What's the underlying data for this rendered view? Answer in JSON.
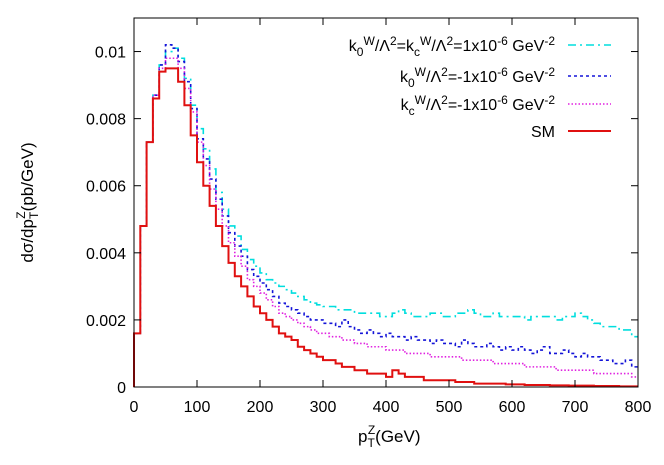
{
  "chart_data": {
    "type": "line",
    "step": true,
    "xlabel": "p_T^Z(GeV)",
    "ylabel": "dσ/dp_T^Z(pb/GeV)",
    "xlim": [
      0,
      800
    ],
    "ylim": [
      0,
      0.011
    ],
    "x_ticks": [
      "0",
      "100",
      "200",
      "300",
      "400",
      "500",
      "600",
      "700",
      "800"
    ],
    "y_ticks": [
      "0",
      "0.002",
      "0.004",
      "0.006",
      "0.008",
      "0.01"
    ],
    "legend_position": "top-right",
    "bin_width": 10,
    "series": [
      {
        "name": "k0W/Λ2=kcW/Λ2=1x10-6 GeV-2",
        "color": "#00dede",
        "dash": "8 4 2 4",
        "values": [
          0.0016,
          0.0048,
          0.0073,
          0.0087,
          0.0096,
          0.01,
          0.0101,
          0.0098,
          0.0092,
          0.0084,
          0.0077,
          0.0071,
          0.0065,
          0.0058,
          0.0053,
          0.0048,
          0.0045,
          0.0041,
          0.0038,
          0.0036,
          0.0034,
          0.0032,
          0.0031,
          0.003,
          0.0029,
          0.0028,
          0.0027,
          0.0026,
          0.0025,
          0.00245,
          0.0024,
          0.0024,
          0.0023,
          0.0023,
          0.0023,
          0.0022,
          0.0022,
          0.0022,
          0.0022,
          0.0021,
          0.0021,
          0.0022,
          0.0023,
          0.0022,
          0.0021,
          0.0021,
          0.0021,
          0.0022,
          0.0022,
          0.0021,
          0.0021,
          0.0022,
          0.0022,
          0.0023,
          0.0022,
          0.0021,
          0.0021,
          0.0022,
          0.0021,
          0.0021,
          0.0021,
          0.0021,
          0.002,
          0.0021,
          0.0021,
          0.0021,
          0.0021,
          0.002,
          0.0021,
          0.0021,
          0.0022,
          0.0021,
          0.002,
          0.0019,
          0.0018,
          0.0018,
          0.0018,
          0.0017,
          0.0017,
          0.0015
        ]
      },
      {
        "name": "k0W/Λ2=-1x10-6 GeV-2",
        "color": "#1414d8",
        "dash": "3 3",
        "values": [
          0.0016,
          0.0048,
          0.0073,
          0.0087,
          0.0096,
          0.0102,
          0.0101,
          0.0097,
          0.0091,
          0.0083,
          0.0074,
          0.0068,
          0.0062,
          0.0056,
          0.0051,
          0.0046,
          0.0042,
          0.0039,
          0.0035,
          0.0033,
          0.0031,
          0.0029,
          0.0027,
          0.0025,
          0.0024,
          0.0023,
          0.0022,
          0.0021,
          0.002,
          0.002,
          0.0019,
          0.0019,
          0.0018,
          0.002,
          0.0018,
          0.0017,
          0.0016,
          0.0017,
          0.0016,
          0.0015,
          0.0016,
          0.0015,
          0.0015,
          0.0014,
          0.0015,
          0.0014,
          0.0014,
          0.0013,
          0.0014,
          0.0013,
          0.0013,
          0.0012,
          0.0014,
          0.0013,
          0.0012,
          0.0012,
          0.0013,
          0.0012,
          0.0011,
          0.0012,
          0.0011,
          0.0012,
          0.0011,
          0.001,
          0.0011,
          0.0012,
          0.001,
          0.001,
          0.0011,
          0.001,
          0.0009,
          0.001,
          0.0009,
          0.0009,
          0.0008,
          0.0008,
          0.0007,
          0.0007,
          0.0008,
          0.0006
        ]
      },
      {
        "name": "kcW/Λ2=-1x10-6 GeV-2",
        "color": "#e020e0",
        "dash": "1.5 2",
        "values": [
          0.0016,
          0.0048,
          0.0073,
          0.0087,
          0.0095,
          0.0098,
          0.0098,
          0.0095,
          0.0089,
          0.0082,
          0.0073,
          0.0066,
          0.0059,
          0.0053,
          0.0048,
          0.0043,
          0.0039,
          0.0036,
          0.0032,
          0.003,
          0.0028,
          0.0026,
          0.0024,
          0.0022,
          0.0021,
          0.002,
          0.0019,
          0.0018,
          0.0017,
          0.0016,
          0.0016,
          0.0015,
          0.0015,
          0.0014,
          0.0014,
          0.0013,
          0.0013,
          0.0012,
          0.0012,
          0.0012,
          0.0011,
          0.0011,
          0.0011,
          0.001,
          0.001,
          0.001,
          0.001,
          0.0009,
          0.0009,
          0.0009,
          0.0009,
          0.0009,
          0.0008,
          0.0008,
          0.0008,
          0.0008,
          0.0008,
          0.0007,
          0.0007,
          0.0007,
          0.0007,
          0.0007,
          0.0006,
          0.0006,
          0.0006,
          0.0006,
          0.0006,
          0.0005,
          0.0005,
          0.0005,
          0.0005,
          0.0005,
          0.0005,
          0.0004,
          0.0004,
          0.0004,
          0.0004,
          0.0004,
          0.0004,
          0.0003
        ]
      },
      {
        "name": "SM",
        "color": "#e01010",
        "dash": "",
        "values": [
          0.0016,
          0.0048,
          0.0073,
          0.0086,
          0.0094,
          0.0095,
          0.0095,
          0.0091,
          0.0084,
          0.0075,
          0.0067,
          0.006,
          0.0054,
          0.0048,
          0.0042,
          0.0037,
          0.0033,
          0.003,
          0.0027,
          0.0024,
          0.0022,
          0.002,
          0.0018,
          0.0016,
          0.0015,
          0.0014,
          0.0012,
          0.0011,
          0.001,
          0.0009,
          0.0008,
          0.0008,
          0.0007,
          0.0006,
          0.0006,
          0.0005,
          0.0005,
          0.0004,
          0.0004,
          0.0004,
          0.0003,
          0.0005,
          0.0004,
          0.0003,
          0.0003,
          0.0003,
          0.0002,
          0.0002,
          0.0002,
          0.0002,
          0.0002,
          0.00015,
          0.00015,
          0.00015,
          0.0001,
          0.0001,
          0.0001,
          0.0001,
          0.0001,
          8e-05,
          8e-05,
          8e-05,
          6e-05,
          6e-05,
          6e-05,
          6e-05,
          5e-05,
          5e-05,
          5e-05,
          4e-05,
          4e-05,
          4e-05,
          4e-05,
          3e-05,
          3e-05,
          3e-05,
          3e-05,
          2e-05,
          2e-05,
          2e-05
        ]
      }
    ]
  }
}
